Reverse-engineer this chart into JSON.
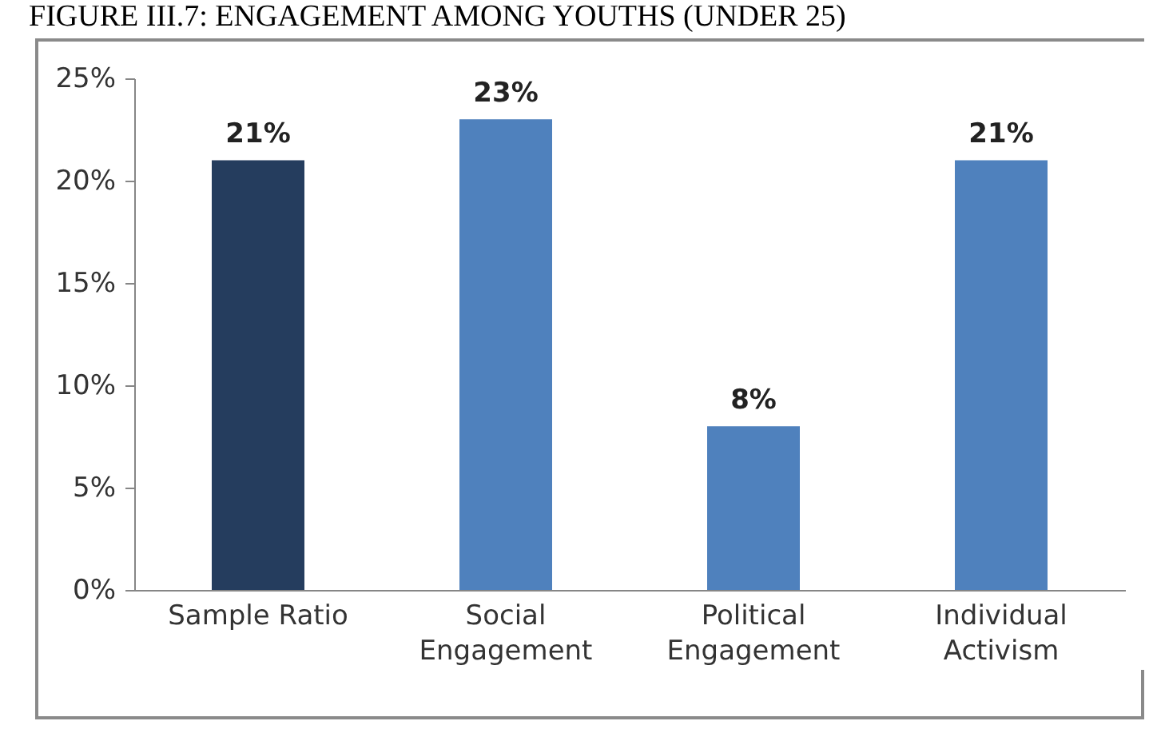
{
  "chart_data": {
    "type": "bar",
    "title": "FIGURE III.7: ENGAGEMENT AMONG YOUTHS (UNDER 25)",
    "categories": [
      "Sample Ratio",
      "Social Engagement",
      "Political Engagement",
      "Individual Activism"
    ],
    "values": [
      21,
      23,
      8,
      21
    ],
    "colors": [
      "#253d5e",
      "#4f81bd",
      "#4f81bd",
      "#4f81bd"
    ],
    "value_labels": [
      "21%",
      "23%",
      "8%",
      "21%"
    ],
    "ylim": [
      0,
      25
    ],
    "yticks": [
      {
        "value": 0,
        "label": "0%"
      },
      {
        "value": 5,
        "label": "5%"
      },
      {
        "value": 10,
        "label": "10%"
      },
      {
        "value": 15,
        "label": "15%"
      },
      {
        "value": 20,
        "label": "20%"
      },
      {
        "value": 25,
        "label": "25%"
      }
    ],
    "grid": false
  }
}
